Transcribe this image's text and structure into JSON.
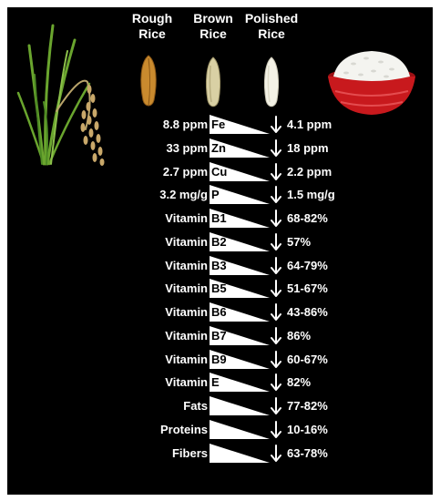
{
  "headers": {
    "rough": [
      "Rough",
      "Rice"
    ],
    "brown": [
      "Brown",
      "Rice"
    ],
    "polished": [
      "Polished",
      "Rice"
    ]
  },
  "colors": {
    "background": "#000000",
    "text": "#ffffff",
    "wedge": "#ffffff",
    "bowl": "#c8191d",
    "plant": "#6aa52e",
    "panicle": "#c9a86a"
  },
  "icons": [
    "rice-plant-icon",
    "rough-rice-grain-icon",
    "brown-rice-grain-icon",
    "polished-rice-grain-icon",
    "rice-bowl-icon",
    "down-arrow-icon"
  ],
  "rows": [
    {
      "left": "8.8 ppm",
      "label": "Fe",
      "right": "4.1 ppm"
    },
    {
      "left": "33 ppm",
      "label": "Zn",
      "right": "18 ppm"
    },
    {
      "left": "2.7 ppm",
      "label": "Cu",
      "right": "2.2 ppm"
    },
    {
      "left": "3.2 mg/g",
      "label": "P",
      "right": "1.5 mg/g"
    },
    {
      "left": "Vitamin",
      "label": "B1",
      "right": "68-82%"
    },
    {
      "left": "Vitamin",
      "label": "B2",
      "right": "57%"
    },
    {
      "left": "Vitamin",
      "label": "B3",
      "right": "64-79%"
    },
    {
      "left": "Vitamin",
      "label": "B5",
      "right": "51-67%"
    },
    {
      "left": "Vitamin",
      "label": "B6",
      "right": "43-86%"
    },
    {
      "left": "Vitamin",
      "label": "B7",
      "right": "86%"
    },
    {
      "left": "Vitamin",
      "label": "B9",
      "right": "60-67%"
    },
    {
      "left": "Vitamin",
      "label": "E",
      "right": "82%"
    },
    {
      "left": "Fats",
      "label": "",
      "right": "77-82%"
    },
    {
      "left": "Proteins",
      "label": "",
      "right": "10-16%"
    },
    {
      "left": "Fibers",
      "label": "",
      "right": "63-78%"
    }
  ]
}
